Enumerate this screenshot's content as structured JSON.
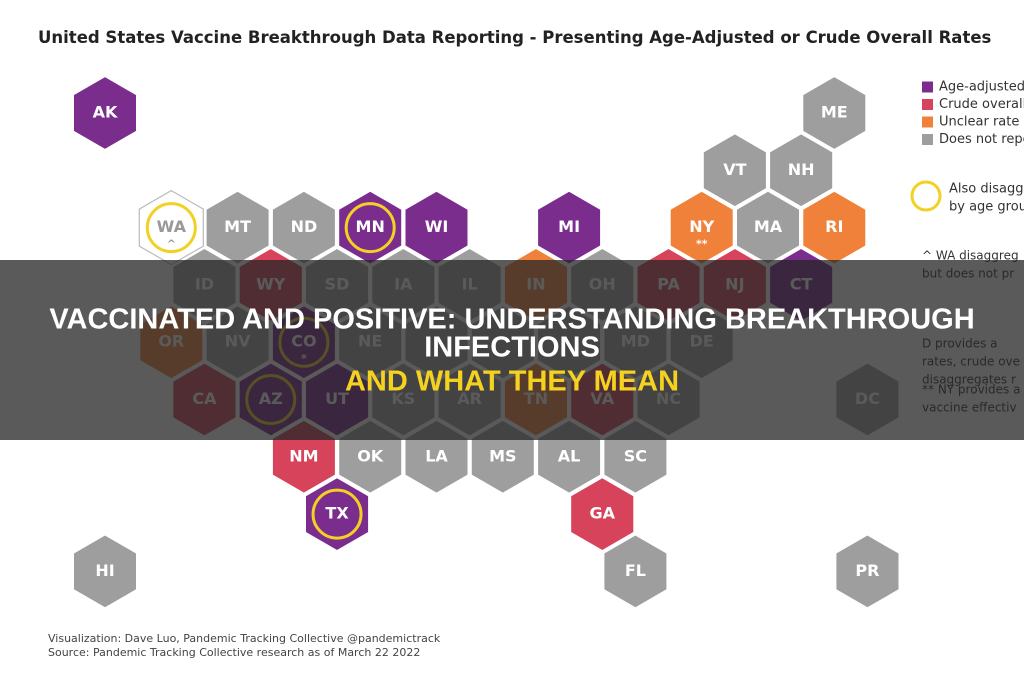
{
  "title": "United States Vaccine Breakthrough Data Reporting - Presenting Age-Adjusted or Crude Overall Rates",
  "legend": [
    {
      "label": "Age-adjusted",
      "color": "#7b2d8e"
    },
    {
      "label": "Crude overall",
      "color": "#d6435a"
    },
    {
      "label": "Unclear rate c",
      "color": "#f0813a"
    },
    {
      "label": "Does not repo",
      "color": "#9e9e9e"
    }
  ],
  "circle_note": [
    "Also disagg",
    "by age grou"
  ],
  "notes": [
    [
      "^ WA disaggreg",
      "but does not pr"
    ],
    [
      "D provides a",
      "rates, crude ove",
      "disaggregates r"
    ],
    [
      "** NY provides a",
      "vaccine effectiv"
    ]
  ],
  "hexes": [
    {
      "label": "AK",
      "col": 0,
      "row": 0,
      "cat": 0
    },
    {
      "label": "ME",
      "col": 11,
      "row": 0,
      "cat": 3
    },
    {
      "label": "VT",
      "col": 9.5,
      "row": 1,
      "cat": 3
    },
    {
      "label": "NH",
      "col": 10.5,
      "row": 1,
      "cat": 3
    },
    {
      "label": "WA",
      "col": 1,
      "row": 2,
      "cat": null,
      "circled": true,
      "mark": "^"
    },
    {
      "label": "MT",
      "col": 2,
      "row": 2,
      "cat": 3
    },
    {
      "label": "ND",
      "col": 3,
      "row": 2,
      "cat": 3
    },
    {
      "label": "MN",
      "col": 4,
      "row": 2,
      "cat": 0,
      "circled": true
    },
    {
      "label": "WI",
      "col": 5,
      "row": 2,
      "cat": 0
    },
    {
      "label": "MI",
      "col": 7,
      "row": 2,
      "cat": 0
    },
    {
      "label": "NY",
      "col": 9,
      "row": 2,
      "cat": 2,
      "mark": "**"
    },
    {
      "label": "MA",
      "col": 10,
      "row": 2,
      "cat": 3
    },
    {
      "label": "RI",
      "col": 11,
      "row": 2,
      "cat": 2
    },
    {
      "label": "ID",
      "col": 1.5,
      "row": 3,
      "cat": 3
    },
    {
      "label": "WY",
      "col": 2.5,
      "row": 3,
      "cat": 1
    },
    {
      "label": "SD",
      "col": 3.5,
      "row": 3,
      "cat": 3
    },
    {
      "label": "IA",
      "col": 4.5,
      "row": 3,
      "cat": 3
    },
    {
      "label": "IL",
      "col": 5.5,
      "row": 3,
      "cat": 3
    },
    {
      "label": "IN",
      "col": 6.5,
      "row": 3,
      "cat": 2
    },
    {
      "label": "OH",
      "col": 7.5,
      "row": 3,
      "cat": 3
    },
    {
      "label": "PA",
      "col": 8.5,
      "row": 3,
      "cat": 1
    },
    {
      "label": "NJ",
      "col": 9.5,
      "row": 3,
      "cat": 1
    },
    {
      "label": "CT",
      "col": 10.5,
      "row": 3,
      "cat": 0
    },
    {
      "label": "OR",
      "col": 1,
      "row": 4,
      "cat": 2
    },
    {
      "label": "NV",
      "col": 2,
      "row": 4,
      "cat": 3
    },
    {
      "label": "CO",
      "col": 3,
      "row": 4,
      "cat": 0,
      "circled": true,
      "mark": "*"
    },
    {
      "label": "NE",
      "col": 4,
      "row": 4,
      "cat": 3
    },
    {
      "label": null,
      "col": 5,
      "row": 4,
      "cat": 3
    },
    {
      "label": null,
      "col": 6,
      "row": 4,
      "cat": 3
    },
    {
      "label": null,
      "col": 7,
      "row": 4,
      "cat": 3
    },
    {
      "label": "MD",
      "col": 8,
      "row": 4,
      "cat": 3
    },
    {
      "label": "DE",
      "col": 9,
      "row": 4,
      "cat": 3
    },
    {
      "label": "CA",
      "col": 1.5,
      "row": 5,
      "cat": 1
    },
    {
      "label": "AZ",
      "col": 2.5,
      "row": 5,
      "cat": 0,
      "circled": true
    },
    {
      "label": "UT",
      "col": 3.5,
      "row": 5,
      "cat": 0
    },
    {
      "label": "KS",
      "col": 4.5,
      "row": 5,
      "cat": 3
    },
    {
      "label": "AR",
      "col": 5.5,
      "row": 5,
      "cat": 3
    },
    {
      "label": "TN",
      "col": 6.5,
      "row": 5,
      "cat": 2
    },
    {
      "label": "VA",
      "col": 7.5,
      "row": 5,
      "cat": 1
    },
    {
      "label": "NC",
      "col": 8.5,
      "row": 5,
      "cat": 3
    },
    {
      "label": "DC",
      "col": 11.5,
      "row": 5,
      "cat": 3
    },
    {
      "label": "NM",
      "col": 3,
      "row": 6,
      "cat": 1
    },
    {
      "label": "OK",
      "col": 4,
      "row": 6,
      "cat": 3
    },
    {
      "label": "LA",
      "col": 5,
      "row": 6,
      "cat": 3
    },
    {
      "label": "MS",
      "col": 6,
      "row": 6,
      "cat": 3
    },
    {
      "label": "AL",
      "col": 7,
      "row": 6,
      "cat": 3
    },
    {
      "label": "SC",
      "col": 8,
      "row": 6,
      "cat": 3
    },
    {
      "label": "TX",
      "col": 3.5,
      "row": 7,
      "cat": 0,
      "circled": true
    },
    {
      "label": "GA",
      "col": 7.5,
      "row": 7,
      "cat": 1
    },
    {
      "label": "HI",
      "col": 0,
      "row": 8,
      "cat": 3
    },
    {
      "label": "FL",
      "col": 8,
      "row": 8,
      "cat": 3
    },
    {
      "label": "PR",
      "col": 11.5,
      "row": 8,
      "cat": 3
    }
  ],
  "footer": [
    "Visualization: Dave Luo, Pandemic Tracking Collective @pandemictrack",
    "Source: Pandemic Tracking Collective research as of March 22 2022"
  ],
  "banner": {
    "lines": [
      "VACCINATED AND POSITIVE: UNDERSTANDING BREAKTHROUGH",
      "INFECTIONS"
    ],
    "highlight": "AND WHAT THEY MEAN"
  }
}
